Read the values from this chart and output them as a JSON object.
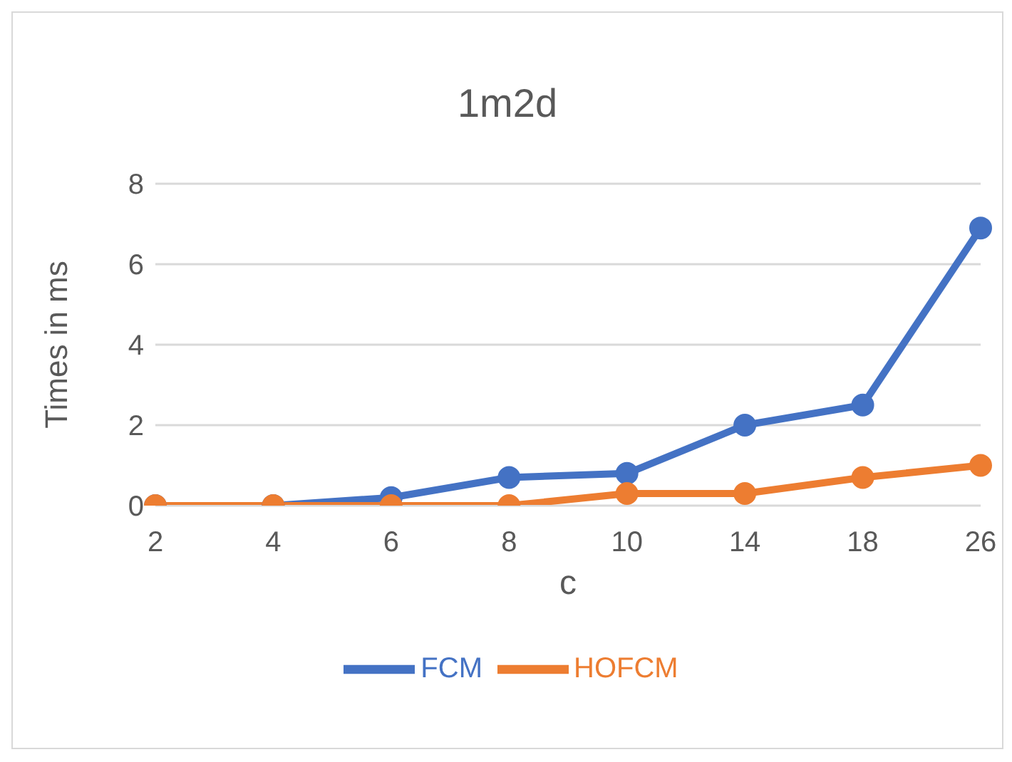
{
  "chart_data": {
    "type": "line",
    "title": "1m2d",
    "xlabel": "c",
    "ylabel": "Times in ms",
    "categories": [
      "2",
      "4",
      "6",
      "8",
      "10",
      "14",
      "18",
      "26"
    ],
    "series": [
      {
        "name": "FCM",
        "color": "#4472c4",
        "values": [
          0,
          0,
          0.2,
          0.7,
          0.8,
          2.0,
          2.5,
          6.9
        ]
      },
      {
        "name": "HOFCM",
        "color": "#ed7d31",
        "values": [
          0,
          0,
          0,
          0,
          0.3,
          0.3,
          0.7,
          1.0
        ]
      }
    ],
    "ylim": [
      0,
      8
    ],
    "yticks": [
      0,
      2,
      4,
      6,
      8
    ],
    "grid": "y",
    "legend": "bottom",
    "marker": "circle",
    "line_style": "solid"
  }
}
